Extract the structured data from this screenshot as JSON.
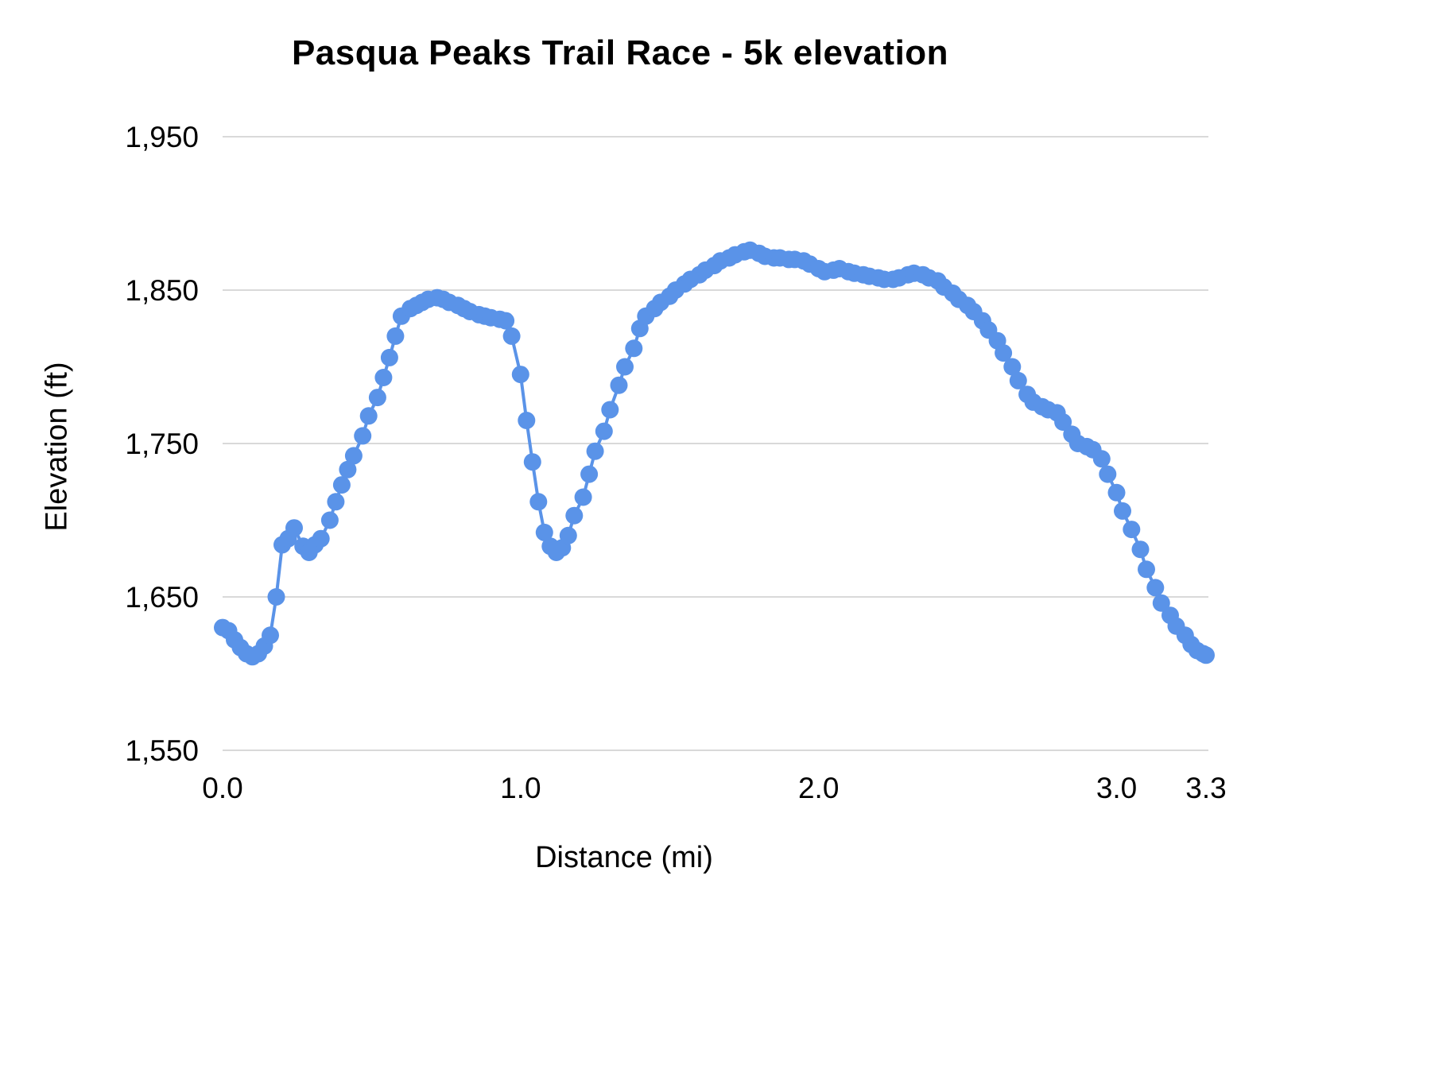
{
  "style": {
    "background": "#ffffff",
    "grid_color": "#d9d9d9",
    "text_color": "#000000",
    "accent": "#5a93e8"
  },
  "chart_data": {
    "type": "line",
    "title": "Pasqua Peaks Trail Race - 5k elevation",
    "xlabel": "Distance (mi)",
    "ylabel": "Elevation (ft)",
    "xlim": [
      0,
      3.3
    ],
    "ylim": [
      1550,
      1950
    ],
    "grid": "horizontal",
    "legend": "none",
    "marker": "circle",
    "line_color": "#5a93e8",
    "y_ticks": [
      {
        "value": 1550,
        "label": "1,550"
      },
      {
        "value": 1650,
        "label": "1,650"
      },
      {
        "value": 1750,
        "label": "1,750"
      },
      {
        "value": 1850,
        "label": "1,850"
      },
      {
        "value": 1950,
        "label": "1,950"
      }
    ],
    "x_ticks": [
      {
        "value": 0.0,
        "label": "0.0"
      },
      {
        "value": 1.0,
        "label": "1.0"
      },
      {
        "value": 2.0,
        "label": "2.0"
      },
      {
        "value": 3.0,
        "label": "3.0"
      },
      {
        "value": 3.3,
        "label": "3.3"
      }
    ],
    "x": [
      0.0,
      0.02,
      0.04,
      0.06,
      0.08,
      0.1,
      0.12,
      0.14,
      0.16,
      0.18,
      0.2,
      0.22,
      0.24,
      0.27,
      0.29,
      0.31,
      0.33,
      0.36,
      0.38,
      0.4,
      0.42,
      0.44,
      0.47,
      0.49,
      0.52,
      0.54,
      0.56,
      0.58,
      0.6,
      0.63,
      0.65,
      0.67,
      0.69,
      0.72,
      0.74,
      0.76,
      0.79,
      0.81,
      0.83,
      0.86,
      0.88,
      0.9,
      0.93,
      0.95,
      0.97,
      1.0,
      1.02,
      1.04,
      1.06,
      1.08,
      1.1,
      1.12,
      1.14,
      1.16,
      1.18,
      1.21,
      1.23,
      1.25,
      1.28,
      1.3,
      1.33,
      1.35,
      1.38,
      1.4,
      1.42,
      1.45,
      1.47,
      1.5,
      1.52,
      1.55,
      1.57,
      1.6,
      1.62,
      1.65,
      1.67,
      1.7,
      1.72,
      1.75,
      1.77,
      1.8,
      1.82,
      1.85,
      1.87,
      1.9,
      1.92,
      1.95,
      1.97,
      2.0,
      2.02,
      2.05,
      2.07,
      2.1,
      2.12,
      2.15,
      2.17,
      2.2,
      2.22,
      2.25,
      2.27,
      2.3,
      2.32,
      2.35,
      2.37,
      2.4,
      2.42,
      2.45,
      2.47,
      2.5,
      2.52,
      2.55,
      2.57,
      2.6,
      2.62,
      2.65,
      2.67,
      2.7,
      2.72,
      2.75,
      2.77,
      2.8,
      2.82,
      2.85,
      2.87,
      2.9,
      2.92,
      2.95,
      2.97,
      3.0,
      3.02,
      3.05,
      3.08,
      3.1,
      3.13,
      3.15,
      3.18,
      3.2,
      3.23,
      3.25,
      3.27,
      3.29,
      3.3
    ],
    "y": [
      1630,
      1628,
      1622,
      1617,
      1613,
      1611,
      1613,
      1618,
      1625,
      1650,
      1684,
      1688,
      1695,
      1683,
      1679,
      1684,
      1688,
      1700,
      1712,
      1723,
      1733,
      1742,
      1755,
      1768,
      1780,
      1793,
      1806,
      1820,
      1833,
      1838,
      1840,
      1842,
      1844,
      1845,
      1844,
      1842,
      1840,
      1838,
      1836,
      1834,
      1833,
      1832,
      1831,
      1830,
      1820,
      1795,
      1765,
      1738,
      1712,
      1692,
      1683,
      1679,
      1682,
      1690,
      1703,
      1715,
      1730,
      1745,
      1758,
      1772,
      1788,
      1800,
      1812,
      1825,
      1833,
      1838,
      1842,
      1846,
      1850,
      1854,
      1857,
      1860,
      1863,
      1866,
      1869,
      1871,
      1873,
      1875,
      1876,
      1874,
      1872,
      1871,
      1871,
      1870,
      1870,
      1869,
      1867,
      1864,
      1862,
      1863,
      1864,
      1862,
      1861,
      1860,
      1859,
      1858,
      1857,
      1857,
      1858,
      1860,
      1861,
      1860,
      1858,
      1856,
      1852,
      1848,
      1844,
      1840,
      1836,
      1830,
      1824,
      1817,
      1809,
      1800,
      1791,
      1782,
      1777,
      1774,
      1772,
      1770,
      1764,
      1756,
      1750,
      1748,
      1746,
      1740,
      1730,
      1718,
      1706,
      1694,
      1681,
      1668,
      1656,
      1646,
      1638,
      1631,
      1625,
      1619,
      1615,
      1613,
      1612
    ]
  }
}
